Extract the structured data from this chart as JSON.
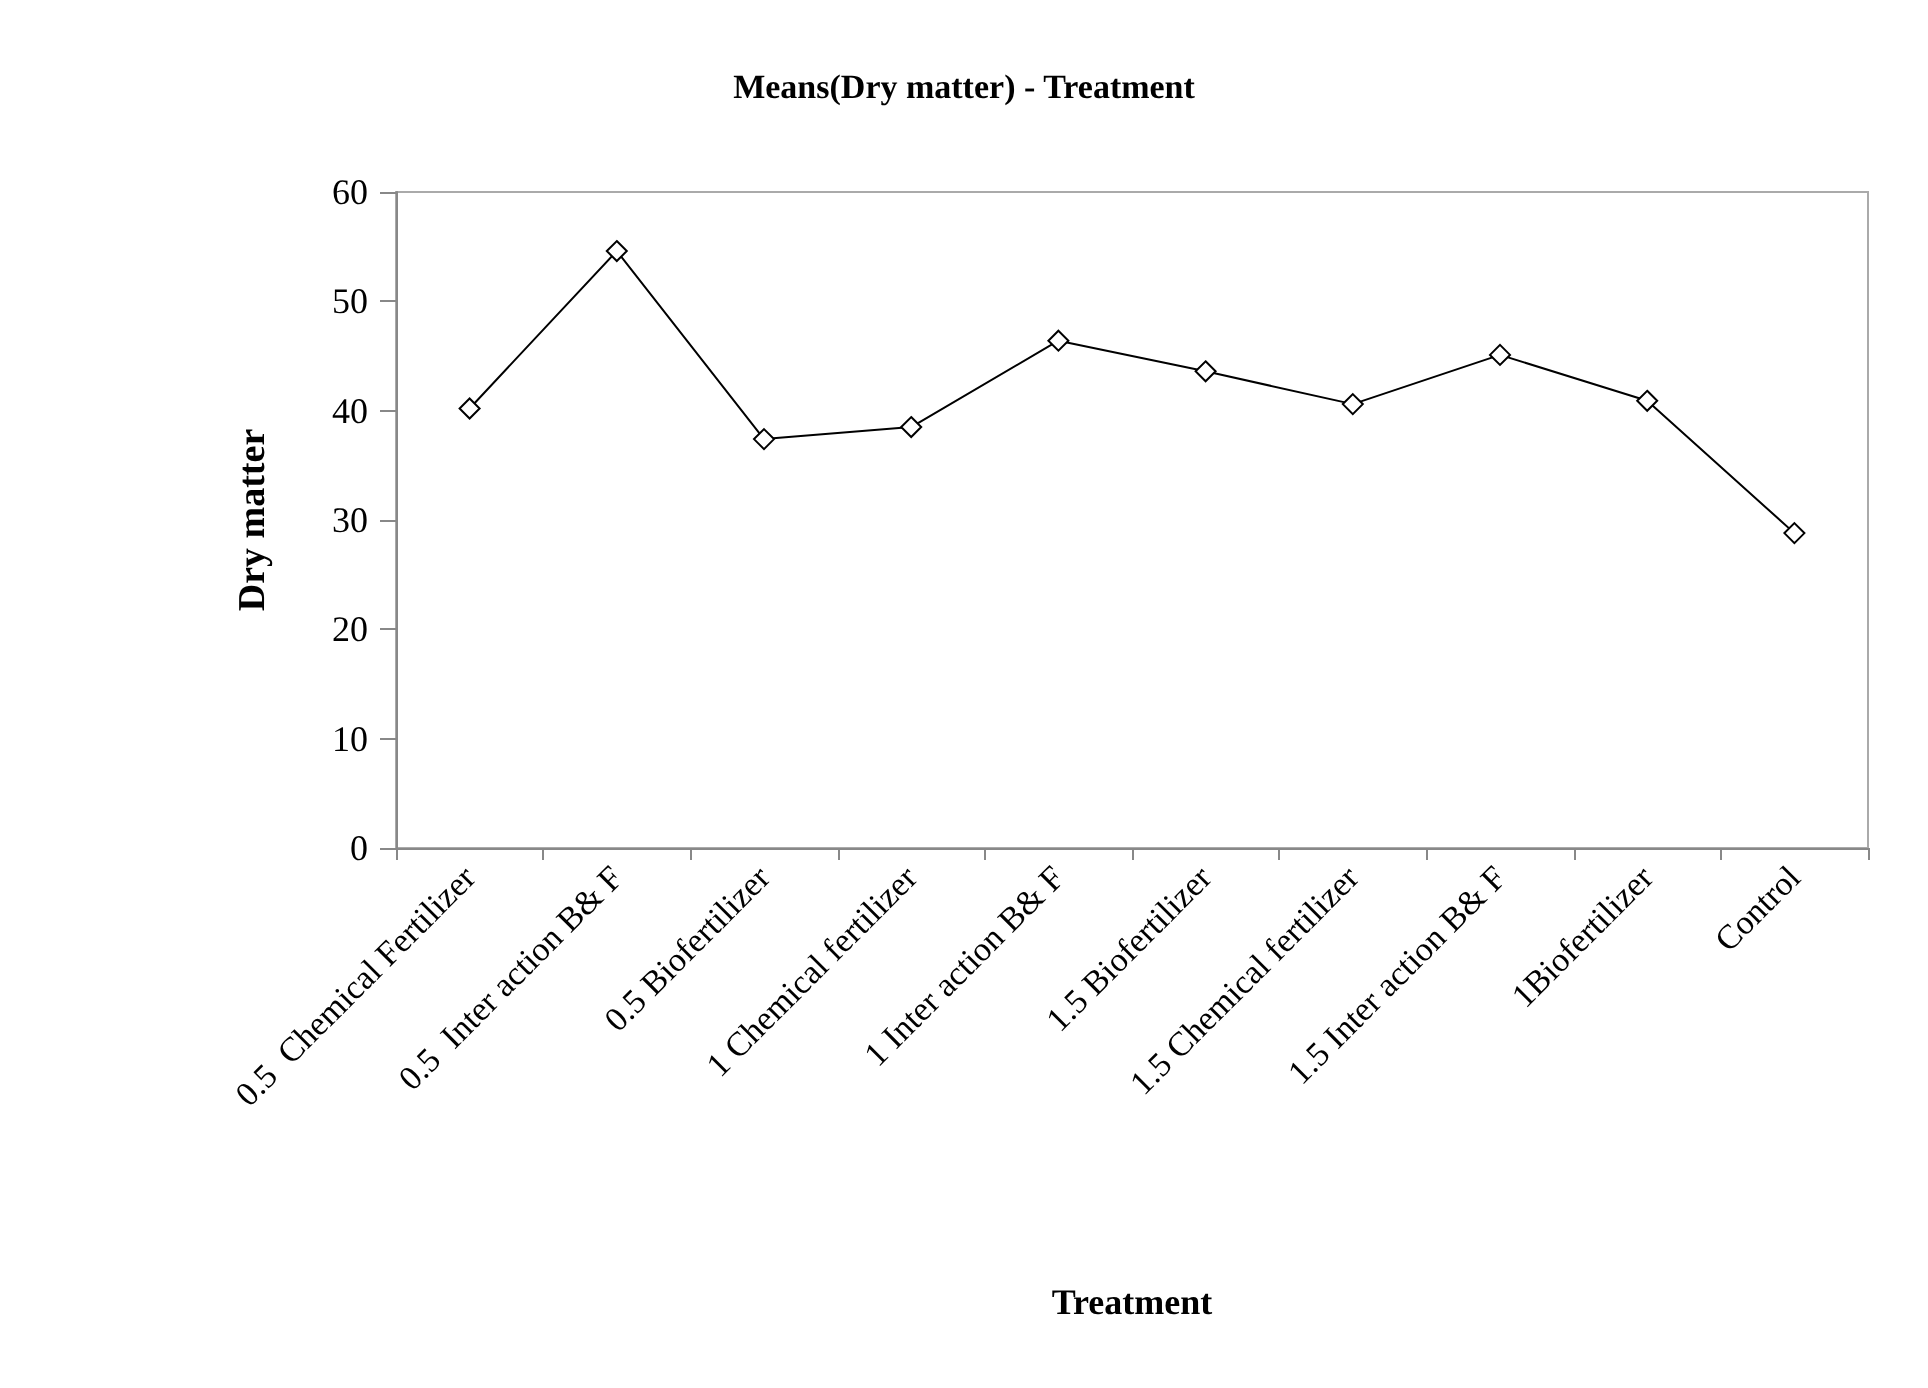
{
  "chart_data": {
    "type": "line",
    "title": "Means(Dry matter) - Treatment",
    "xlabel": "Treatment",
    "ylabel": "Dry matter",
    "categories": [
      "0.5  Chemical Fertilizer",
      "0.5  Inter action B& F",
      "0.5 Biofertilizer",
      "1 Chemical fertilizer",
      "1 Inter action B& F",
      "1.5 Biofertilizer",
      "1.5 Chemical fertilizer",
      "1.5 Inter action B& F",
      "1Biofertilizer",
      "Control"
    ],
    "series": [
      {
        "color": "#000000",
        "values": [
          40.2,
          54.6,
          37.4,
          38.5,
          46.4,
          43.6,
          40.6,
          45.1,
          40.9,
          28.8
        ]
      }
    ],
    "ylim": [
      0,
      60
    ],
    "yticks": [
      0,
      10,
      20,
      30,
      40,
      50,
      60
    ],
    "grid": false,
    "marker": "diamond",
    "line_style": "solid"
  }
}
